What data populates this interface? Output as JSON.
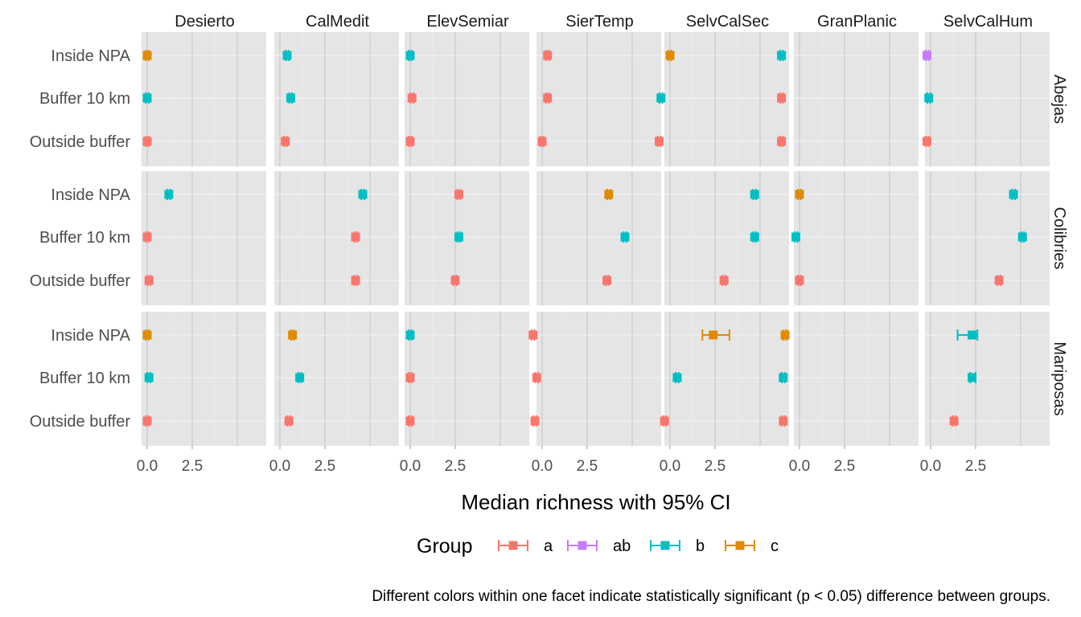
{
  "chart_data": {
    "type": "errorbar-facet",
    "x_label": "Median richness with 95% CI",
    "x_ticks": [
      0.0,
      2.5
    ],
    "x_tick_labels": [
      "0.0",
      "2.5"
    ],
    "xlim": [
      -0.2,
      5.45
    ],
    "categories": [
      "Inside NPA",
      "Buffer 10 km",
      "Outside buffer"
    ],
    "columns": [
      "Desierto",
      "CalMedit",
      "ElevSemiar",
      "SierTemp",
      "SelvCalSec",
      "GranPlanic",
      "SelvCalHum"
    ],
    "rows": [
      "Abejas",
      "Colibries",
      "Mariposas"
    ],
    "legend": {
      "title": "Group",
      "entries": [
        {
          "key": "a",
          "label": "a",
          "color": "#F8766D"
        },
        {
          "key": "ab",
          "label": "ab",
          "color": "#C77CFF"
        },
        {
          "key": "b",
          "label": "b",
          "color": "#00BFC4"
        },
        {
          "key": "c",
          "label": "c",
          "color": "#E08B00"
        }
      ]
    },
    "caption": "Different colors within one facet indicate statistically significant (p < 0.05) difference between groups.",
    "points": [
      {
        "row": "Abejas",
        "col": "Desierto",
        "cat": "Inside NPA",
        "median": 0.0,
        "lo": -0.08,
        "hi": 0.08,
        "group": "c"
      },
      {
        "row": "Abejas",
        "col": "Desierto",
        "cat": "Buffer 10 km",
        "median": 0.0,
        "lo": -0.08,
        "hi": 0.08,
        "group": "b"
      },
      {
        "row": "Abejas",
        "col": "Desierto",
        "cat": "Outside buffer",
        "median": 0.0,
        "lo": -0.08,
        "hi": 0.08,
        "group": "a"
      },
      {
        "row": "Abejas",
        "col": "CalMedit",
        "cat": "Inside NPA",
        "median": 0.4,
        "lo": 0.32,
        "hi": 0.48,
        "group": "b"
      },
      {
        "row": "Abejas",
        "col": "CalMedit",
        "cat": "Buffer 10 km",
        "median": 0.6,
        "lo": 0.52,
        "hi": 0.68,
        "group": "b"
      },
      {
        "row": "Abejas",
        "col": "CalMedit",
        "cat": "Outside buffer",
        "median": 0.3,
        "lo": 0.22,
        "hi": 0.38,
        "group": "a"
      },
      {
        "row": "Abejas",
        "col": "ElevSemiar",
        "cat": "Inside NPA",
        "median": 0.0,
        "lo": -0.08,
        "hi": 0.08,
        "group": "b"
      },
      {
        "row": "Abejas",
        "col": "ElevSemiar",
        "cat": "Buffer 10 km",
        "median": 0.1,
        "lo": 0.02,
        "hi": 0.18,
        "group": "a"
      },
      {
        "row": "Abejas",
        "col": "ElevSemiar",
        "cat": "Outside buffer",
        "median": 0.0,
        "lo": -0.08,
        "hi": 0.08,
        "group": "a"
      },
      {
        "row": "Abejas",
        "col": "SierTemp",
        "cat": "Inside NPA",
        "median": 0.3,
        "lo": 0.22,
        "hi": 0.38,
        "group": "a"
      },
      {
        "row": "Abejas",
        "col": "SierTemp",
        "cat": "Buffer 10 km",
        "median": 0.3,
        "lo": 0.22,
        "hi": 0.38,
        "group": "a"
      },
      {
        "row": "Abejas",
        "col": "SierTemp",
        "cat": "Outside buffer",
        "median": 0.0,
        "lo": -0.08,
        "hi": 0.08,
        "group": "a"
      },
      {
        "row": "Abejas",
        "col": "SelvCalSec",
        "cat": "Inside NPA",
        "median": 0.0,
        "lo": -0.08,
        "hi": 0.08,
        "group": "c"
      },
      {
        "row": "Abejas",
        "col": "SelvCalSec",
        "cat": "Buffer 10 km",
        "median": -0.5,
        "lo": -0.58,
        "hi": -0.42,
        "group": "b"
      },
      {
        "row": "Abejas",
        "col": "SelvCalSec",
        "cat": "Outside buffer",
        "median": -0.6,
        "lo": -0.68,
        "hi": -0.52,
        "group": "a"
      },
      {
        "row": "Abejas",
        "col": "GranPlanic",
        "cat": "Inside NPA",
        "median": -1.0,
        "lo": -1.08,
        "hi": -0.92,
        "group": "b"
      },
      {
        "row": "Abejas",
        "col": "GranPlanic",
        "cat": "Buffer 10 km",
        "median": -1.0,
        "lo": -1.08,
        "hi": -0.92,
        "group": "a"
      },
      {
        "row": "Abejas",
        "col": "GranPlanic",
        "cat": "Outside buffer",
        "median": -1.0,
        "lo": -1.08,
        "hi": -0.92,
        "group": "a"
      },
      {
        "row": "Abejas",
        "col": "SelvCalHum",
        "cat": "Inside NPA",
        "median": -0.2,
        "lo": -0.28,
        "hi": -0.12,
        "group": "ab"
      },
      {
        "row": "Abejas",
        "col": "SelvCalHum",
        "cat": "Buffer 10 km",
        "median": -0.1,
        "lo": -0.18,
        "hi": -0.02,
        "group": "b"
      },
      {
        "row": "Abejas",
        "col": "SelvCalHum",
        "cat": "Outside buffer",
        "median": -0.2,
        "lo": -0.28,
        "hi": -0.12,
        "group": "a"
      },
      {
        "row": "Colibries",
        "col": "Desierto",
        "cat": "Inside NPA",
        "median": 1.2,
        "lo": 1.12,
        "hi": 1.28,
        "group": "b"
      },
      {
        "row": "Colibries",
        "col": "Desierto",
        "cat": "Buffer 10 km",
        "median": 0.0,
        "lo": -0.08,
        "hi": 0.08,
        "group": "a"
      },
      {
        "row": "Colibries",
        "col": "Desierto",
        "cat": "Outside buffer",
        "median": 0.1,
        "lo": 0.02,
        "hi": 0.18,
        "group": "a"
      },
      {
        "row": "Colibries",
        "col": "CalMedit",
        "cat": "Inside NPA",
        "median": 4.6,
        "lo": 4.52,
        "hi": 4.68,
        "group": "b"
      },
      {
        "row": "Colibries",
        "col": "CalMedit",
        "cat": "Buffer 10 km",
        "median": 4.2,
        "lo": 4.12,
        "hi": 4.28,
        "group": "a"
      },
      {
        "row": "Colibries",
        "col": "CalMedit",
        "cat": "Outside buffer",
        "median": 4.2,
        "lo": 4.12,
        "hi": 4.28,
        "group": "a"
      },
      {
        "row": "Colibries",
        "col": "ElevSemiar",
        "cat": "Inside NPA",
        "median": 2.7,
        "lo": 2.62,
        "hi": 2.78,
        "group": "a"
      },
      {
        "row": "Colibries",
        "col": "ElevSemiar",
        "cat": "Buffer 10 km",
        "median": 2.7,
        "lo": 2.62,
        "hi": 2.78,
        "group": "b"
      },
      {
        "row": "Colibries",
        "col": "ElevSemiar",
        "cat": "Outside buffer",
        "median": 2.5,
        "lo": 2.42,
        "hi": 2.58,
        "group": "a"
      },
      {
        "row": "Colibries",
        "col": "SierTemp",
        "cat": "Inside NPA",
        "median": 3.7,
        "lo": 3.62,
        "hi": 3.78,
        "group": "c"
      },
      {
        "row": "Colibries",
        "col": "SierTemp",
        "cat": "Buffer 10 km",
        "median": 4.6,
        "lo": 4.52,
        "hi": 4.68,
        "group": "b"
      },
      {
        "row": "Colibries",
        "col": "SierTemp",
        "cat": "Outside buffer",
        "median": 3.6,
        "lo": 3.52,
        "hi": 3.68,
        "group": "a"
      },
      {
        "row": "Colibries",
        "col": "SelvCalSec",
        "cat": "Inside NPA",
        "median": 4.7,
        "lo": 4.62,
        "hi": 4.78,
        "group": "b"
      },
      {
        "row": "Colibries",
        "col": "SelvCalSec",
        "cat": "Buffer 10 km",
        "median": 4.7,
        "lo": 4.62,
        "hi": 4.78,
        "group": "b"
      },
      {
        "row": "Colibries",
        "col": "SelvCalSec",
        "cat": "Outside buffer",
        "median": 3.0,
        "lo": 2.92,
        "hi": 3.08,
        "group": "a"
      },
      {
        "row": "Colibries",
        "col": "GranPlanic",
        "cat": "Inside NPA",
        "median": 0.0,
        "lo": -0.08,
        "hi": 0.08,
        "group": "c"
      },
      {
        "row": "Colibries",
        "col": "GranPlanic",
        "cat": "Buffer 10 km",
        "median": -0.2,
        "lo": -0.28,
        "hi": -0.12,
        "group": "b"
      },
      {
        "row": "Colibries",
        "col": "GranPlanic",
        "cat": "Outside buffer",
        "median": 0.0,
        "lo": -0.08,
        "hi": 0.08,
        "group": "a"
      },
      {
        "row": "Colibries",
        "col": "SelvCalHum",
        "cat": "Inside NPA",
        "median": 4.6,
        "lo": 4.52,
        "hi": 4.68,
        "group": "b"
      },
      {
        "row": "Colibries",
        "col": "SelvCalHum",
        "cat": "Buffer 10 km",
        "median": 5.1,
        "lo": 5.02,
        "hi": 5.18,
        "group": "b"
      },
      {
        "row": "Colibries",
        "col": "SelvCalHum",
        "cat": "Outside buffer",
        "median": 3.8,
        "lo": 3.72,
        "hi": 3.88,
        "group": "a"
      },
      {
        "row": "Mariposas",
        "col": "Desierto",
        "cat": "Inside NPA",
        "median": 0.0,
        "lo": -0.08,
        "hi": 0.08,
        "group": "c"
      },
      {
        "row": "Mariposas",
        "col": "Desierto",
        "cat": "Buffer 10 km",
        "median": 0.1,
        "lo": 0.02,
        "hi": 0.18,
        "group": "b"
      },
      {
        "row": "Mariposas",
        "col": "Desierto",
        "cat": "Outside buffer",
        "median": 0.0,
        "lo": -0.08,
        "hi": 0.08,
        "group": "a"
      },
      {
        "row": "Mariposas",
        "col": "CalMedit",
        "cat": "Inside NPA",
        "median": 0.7,
        "lo": 0.62,
        "hi": 0.78,
        "group": "c"
      },
      {
        "row": "Mariposas",
        "col": "CalMedit",
        "cat": "Buffer 10 km",
        "median": 1.1,
        "lo": 1.02,
        "hi": 1.18,
        "group": "b"
      },
      {
        "row": "Mariposas",
        "col": "CalMedit",
        "cat": "Outside buffer",
        "median": 0.5,
        "lo": 0.42,
        "hi": 0.58,
        "group": "a"
      },
      {
        "row": "Mariposas",
        "col": "ElevSemiar",
        "cat": "Inside NPA",
        "median": 0.0,
        "lo": -0.08,
        "hi": 0.08,
        "group": "b"
      },
      {
        "row": "Mariposas",
        "col": "ElevSemiar",
        "cat": "Buffer 10 km",
        "median": 0.0,
        "lo": -0.08,
        "hi": 0.08,
        "group": "a"
      },
      {
        "row": "Mariposas",
        "col": "ElevSemiar",
        "cat": "Outside buffer",
        "median": 0.0,
        "lo": -0.08,
        "hi": 0.08,
        "group": "a"
      },
      {
        "row": "Mariposas",
        "col": "SierTemp",
        "cat": "Inside NPA",
        "median": -0.5,
        "lo": -0.58,
        "hi": -0.42,
        "group": "a"
      },
      {
        "row": "Mariposas",
        "col": "SierTemp",
        "cat": "Buffer 10 km",
        "median": -0.3,
        "lo": -0.38,
        "hi": -0.22,
        "group": "a"
      },
      {
        "row": "Mariposas",
        "col": "SierTemp",
        "cat": "Outside buffer",
        "median": -0.4,
        "lo": -0.48,
        "hi": -0.32,
        "group": "a"
      },
      {
        "row": "Mariposas",
        "col": "SelvCalSec",
        "cat": "Inside NPA",
        "median": 2.4,
        "lo": 1.8,
        "hi": 3.3,
        "group": "c"
      },
      {
        "row": "Mariposas",
        "col": "SelvCalSec",
        "cat": "Buffer 10 km",
        "median": 0.4,
        "lo": 0.32,
        "hi": 0.48,
        "group": "b"
      },
      {
        "row": "Mariposas",
        "col": "SelvCalSec",
        "cat": "Outside buffer",
        "median": -0.3,
        "lo": -0.38,
        "hi": -0.22,
        "group": "a"
      },
      {
        "row": "Mariposas",
        "col": "GranPlanic",
        "cat": "Inside NPA",
        "median": -0.8,
        "lo": -0.88,
        "hi": -0.72,
        "group": "c"
      },
      {
        "row": "Mariposas",
        "col": "GranPlanic",
        "cat": "Buffer 10 km",
        "median": -0.9,
        "lo": -0.98,
        "hi": -0.82,
        "group": "b"
      },
      {
        "row": "Mariposas",
        "col": "GranPlanic",
        "cat": "Outside buffer",
        "median": -0.9,
        "lo": -0.98,
        "hi": -0.82,
        "group": "a"
      },
      {
        "row": "Mariposas",
        "col": "SelvCalHum",
        "cat": "Inside NPA",
        "median": 2.3,
        "lo": 1.5,
        "hi": 2.6,
        "group": "b"
      },
      {
        "row": "Mariposas",
        "col": "SelvCalHum",
        "cat": "Buffer 10 km",
        "median": 2.3,
        "lo": 2.2,
        "hi": 2.5,
        "group": "b"
      },
      {
        "row": "Mariposas",
        "col": "SelvCalHum",
        "cat": "Outside buffer",
        "median": 1.3,
        "lo": 1.22,
        "hi": 1.38,
        "group": "a"
      }
    ]
  }
}
